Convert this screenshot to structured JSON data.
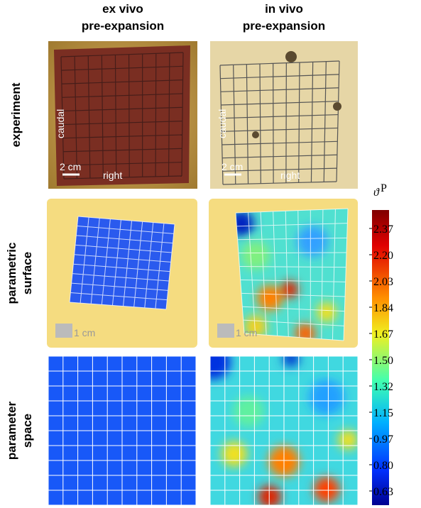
{
  "columns": [
    [
      "ex vivo",
      "pre-expansion"
    ],
    [
      "in vivo",
      "pre-expansion"
    ]
  ],
  "rows": [
    [
      "experiment"
    ],
    [
      "parametric",
      "surface"
    ],
    [
      "parameter",
      "space"
    ]
  ],
  "experiment_annotations": [
    {
      "side": "caudal",
      "scale": "2 cm",
      "bottom": "right"
    },
    {
      "side": "caudal",
      "scale": "2 cm",
      "bottom": "right"
    }
  ],
  "surface_annotations": [
    "1 cm",
    "1 cm"
  ],
  "colorbar": {
    "symbol": "ϑ",
    "superscript": "P",
    "tick_labels": [
      "2.37",
      "2.20",
      "2.03",
      "1.84",
      "1.67",
      "1.50",
      "1.32",
      "1.15",
      "0.97",
      "0.80",
      "0.63"
    ]
  }
}
